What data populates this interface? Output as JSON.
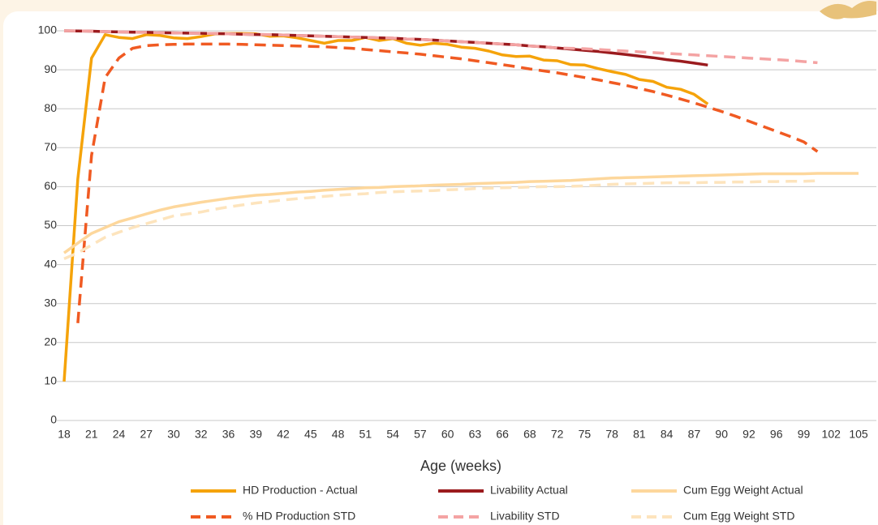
{
  "chart_data": {
    "type": "line",
    "x_label": "Age (weeks)",
    "categories": [
      "18",
      null,
      "21",
      null,
      "24",
      null,
      "27",
      null,
      "30",
      null,
      "32",
      null,
      "36",
      null,
      "39",
      null,
      "42",
      null,
      "45",
      null,
      "48",
      null,
      "51",
      null,
      "54",
      null,
      "57",
      null,
      "60",
      null,
      "63",
      null,
      "66",
      null,
      "68",
      null,
      "72",
      null,
      "75",
      null,
      "78",
      null,
      "81",
      null,
      "84",
      null,
      "87",
      null,
      "90",
      null,
      "92",
      null,
      "96",
      null,
      "99",
      null,
      "102",
      null,
      "105"
    ],
    "series": [
      {
        "name": "HD Production - Actual",
        "color": "#f5a30a",
        "dashed": false,
        "values": [
          10,
          62,
          93,
          99,
          98.3,
          98,
          99,
          98.8,
          98.2,
          98,
          98.5,
          99.2,
          99.3,
          99.3,
          99.2,
          98.6,
          98.7,
          98.2,
          97.5,
          96.8,
          97.5,
          97.5,
          98.3,
          97.5,
          98,
          96.8,
          96.3,
          96.8,
          96.5,
          95.8,
          95.5,
          94.8,
          93.8,
          93.4,
          93.5,
          92.5,
          92.3,
          91.3,
          91.2,
          90.3,
          89.5,
          88.8,
          87.5,
          87,
          85.5,
          85,
          83.7,
          81.2,
          null,
          null,
          null,
          null,
          null,
          null,
          null,
          null,
          null,
          null,
          null
        ]
      },
      {
        "name": "% HD Production STD",
        "color": "#f05a22",
        "dashed": true,
        "values": [
          null,
          25,
          68,
          88,
          93,
          95.5,
          96.2,
          96.4,
          96.5,
          96.6,
          96.6,
          96.6,
          96.6,
          96.5,
          96.4,
          96.3,
          96.2,
          96.1,
          96,
          95.9,
          95.7,
          95.5,
          95.2,
          94.9,
          94.6,
          94.3,
          94,
          93.6,
          93.2,
          92.8,
          92.3,
          91.8,
          91.3,
          90.8,
          90.2,
          89.7,
          89.2,
          88.6,
          88,
          87.4,
          86.7,
          86,
          85.2,
          84.4,
          83.5,
          82.5,
          81.5,
          80.4,
          79.3,
          78.1,
          76.8,
          75.5,
          74.2,
          72.9,
          71.5,
          69,
          null,
          null,
          null
        ]
      },
      {
        "name": "Livability Actual",
        "color": "#9b1b1e",
        "dashed": false,
        "values": [
          100,
          99.95,
          99.9,
          99.8,
          99.7,
          99.65,
          99.6,
          99.5,
          99.45,
          99.4,
          99.35,
          99.3,
          99.2,
          99.1,
          99.05,
          99,
          98.9,
          98.8,
          98.7,
          98.6,
          98.5,
          98.4,
          98.3,
          98.2,
          98.1,
          97.9,
          97.8,
          97.6,
          97.4,
          97.2,
          97,
          96.8,
          96.6,
          96.4,
          96.1,
          95.9,
          95.6,
          95.3,
          95,
          94.7,
          94.3,
          93.9,
          93.5,
          93.1,
          92.6,
          92.2,
          91.7,
          91.2,
          null,
          null,
          null,
          null,
          null,
          null,
          null,
          null,
          null,
          null,
          null
        ]
      },
      {
        "name": "Livability STD",
        "color": "#f4a3a3",
        "dashed": true,
        "values": [
          100,
          99.95,
          99.9,
          99.8,
          99.7,
          99.65,
          99.6,
          99.5,
          99.45,
          99.4,
          99.35,
          99.3,
          99.2,
          99.1,
          99.05,
          99,
          98.9,
          98.8,
          98.7,
          98.6,
          98.5,
          98.4,
          98.3,
          98.2,
          98.1,
          97.9,
          97.8,
          97.6,
          97.4,
          97.2,
          97,
          96.8,
          96.6,
          96.4,
          96.1,
          95.9,
          95.6,
          95.5,
          95.4,
          95.2,
          95,
          94.8,
          94.6,
          94.4,
          94.2,
          94,
          93.8,
          93.6,
          93.4,
          93.2,
          93,
          92.8,
          92.6,
          92.4,
          92.1,
          91.8,
          null,
          null,
          null
        ]
      },
      {
        "name": "Cum Egg Weight Actual",
        "color": "#fdd79c",
        "dashed": false,
        "values": [
          43,
          45.5,
          48,
          49.5,
          51,
          52,
          53,
          54,
          54.8,
          55.4,
          56,
          56.5,
          57,
          57.4,
          57.8,
          58,
          58.3,
          58.6,
          58.8,
          59.1,
          59.3,
          59.5,
          59.7,
          59.8,
          60,
          60.1,
          60.2,
          60.4,
          60.5,
          60.6,
          60.8,
          60.9,
          61,
          61.1,
          61.3,
          61.4,
          61.5,
          61.6,
          61.8,
          62,
          62.2,
          62.3,
          62.4,
          62.5,
          62.6,
          62.7,
          62.8,
          62.9,
          63,
          63.1,
          63.2,
          63.3,
          63.3,
          63.3,
          63.3,
          63.4,
          63.4,
          63.4,
          63.4
        ]
      },
      {
        "name": "Cum Egg Weight STD",
        "color": "#fde4bd",
        "dashed": true,
        "values": [
          41.5,
          43,
          45,
          47,
          48.3,
          49.5,
          50.5,
          51.5,
          52.5,
          53,
          53.5,
          54.2,
          54.8,
          55.3,
          55.8,
          56.2,
          56.6,
          56.9,
          57.2,
          57.5,
          57.8,
          58,
          58.2,
          58.5,
          58.7,
          58.8,
          58.9,
          59,
          59.2,
          59.3,
          59.5,
          59.6,
          59.7,
          59.8,
          59.9,
          60,
          60,
          60.1,
          60.2,
          60.4,
          60.6,
          60.7,
          60.8,
          60.9,
          61,
          61,
          61,
          61.1,
          61.1,
          61.2,
          61.2,
          61.3,
          61.3,
          61.4,
          61.4,
          61.5,
          null,
          null,
          null
        ]
      }
    ],
    "ylim": [
      0,
      100
    ],
    "yticks": [
      0,
      10,
      20,
      30,
      40,
      50,
      60,
      70,
      80,
      90,
      100
    ],
    "grid": true,
    "legend": "bottom"
  }
}
